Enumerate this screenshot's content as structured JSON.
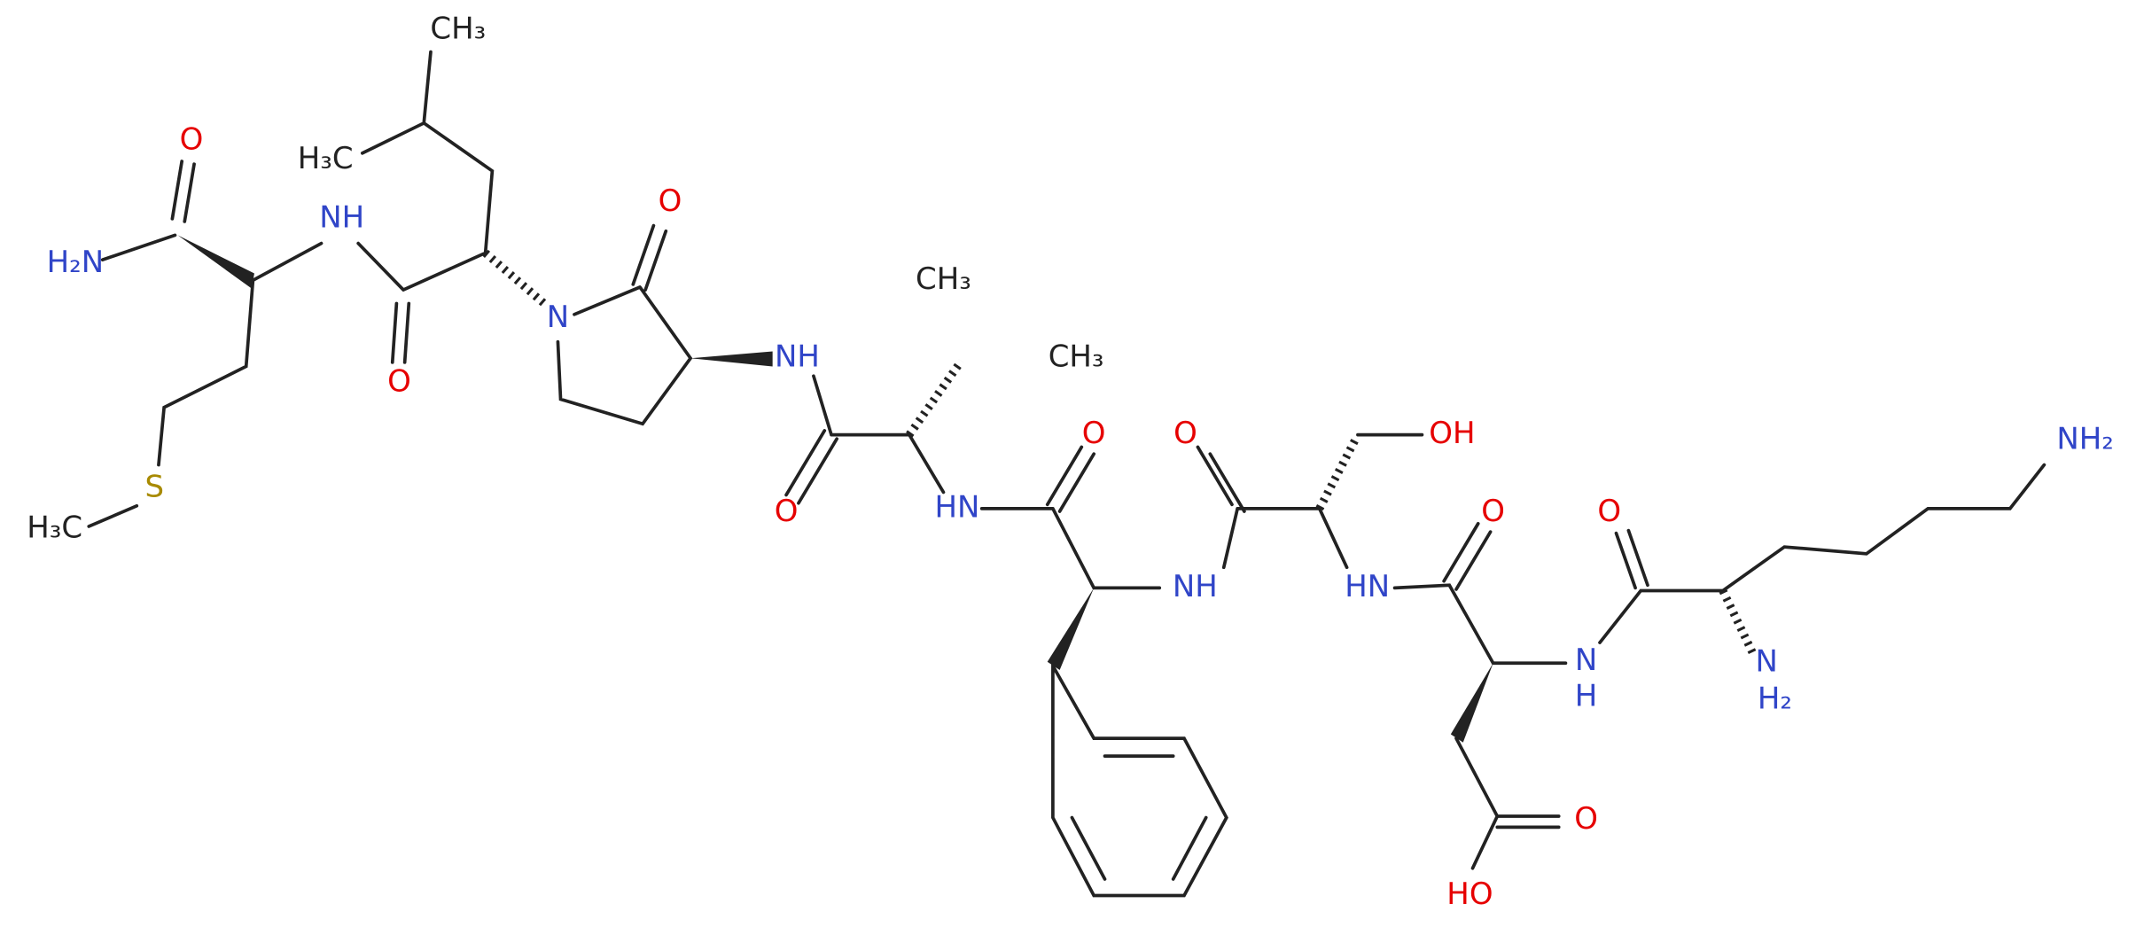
{
  "atoms": [
    {
      "label": "O"
    },
    {
      "label": "H₂N"
    },
    {
      "label": "NH"
    },
    {
      "label": "S"
    },
    {
      "label": "H₃C"
    },
    {
      "label": "CH₃"
    },
    {
      "label": "H₃C"
    },
    {
      "label": "O"
    },
    {
      "label": "N"
    },
    {
      "label": "O"
    },
    {
      "label": "NH"
    },
    {
      "label": "CH₃"
    },
    {
      "label": "CH₃"
    },
    {
      "label": "O"
    },
    {
      "label": "O"
    },
    {
      "label": "HN"
    },
    {
      "label": "O"
    },
    {
      "label": "OH"
    },
    {
      "label": "NH"
    },
    {
      "label": "HN"
    },
    {
      "label": "O"
    },
    {
      "label": "O"
    },
    {
      "label": "NH₂"
    },
    {
      "label": "N"
    },
    {
      "label": "H"
    },
    {
      "label": "N"
    },
    {
      "label": "H₂"
    },
    {
      "label": "O"
    },
    {
      "label": "HO"
    }
  ]
}
